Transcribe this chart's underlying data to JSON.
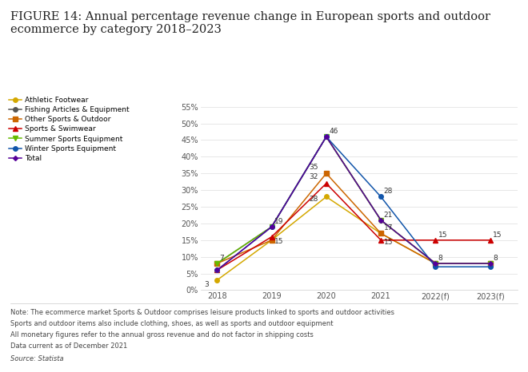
{
  "title": "FIGURE 14: Annual percentage revenue change in European sports and outdoor\necommerce by category 2018–2023",
  "categories": [
    "2018",
    "2019",
    "2020",
    "2021",
    "2022(f)",
    "2023(f)"
  ],
  "series": [
    {
      "name": "Athletic Footwear",
      "color": "#d4a800",
      "marker": "o",
      "markersize": 4,
      "linestyle": "-",
      "values": [
        3,
        15,
        28,
        17,
        8,
        8
      ]
    },
    {
      "name": "Fishing Articles & Equipment",
      "color": "#555555",
      "marker": "o",
      "markersize": 4,
      "linestyle": "-",
      "values": [
        8,
        19,
        46,
        21,
        8,
        8
      ]
    },
    {
      "name": "Other Sports & Outdoor",
      "color": "#cc6600",
      "marker": "s",
      "markersize": 4,
      "linestyle": "-",
      "values": [
        8,
        15,
        35,
        17,
        8,
        8
      ]
    },
    {
      "name": "Sports & Swimwear",
      "color": "#cc0000",
      "marker": "^",
      "markersize": 4,
      "linestyle": "-",
      "values": [
        6,
        16,
        32,
        15,
        15,
        15
      ]
    },
    {
      "name": "Summer Sports Equipment",
      "color": "#66bb00",
      "marker": "v",
      "markersize": 4,
      "linestyle": "-",
      "values": [
        8,
        19,
        46,
        21,
        8,
        8
      ]
    },
    {
      "name": "Winter Sports Equipment",
      "color": "#1155aa",
      "marker": "o",
      "markersize": 4,
      "linestyle": "-",
      "values": [
        6,
        19,
        46,
        28,
        7,
        7
      ]
    },
    {
      "name": "Total",
      "color": "#550099",
      "marker": "D",
      "markersize": 3,
      "linestyle": "-",
      "values": [
        6,
        19,
        46,
        21,
        8,
        8
      ]
    }
  ],
  "ylim": [
    0,
    58
  ],
  "yticks": [
    0,
    5,
    10,
    15,
    20,
    25,
    30,
    35,
    40,
    45,
    50,
    55
  ],
  "note_lines": [
    "Note: The ecommerce market Sports & Outdoor comprises leisure products linked to sports and outdoor activities",
    "Sports and outdoor items also include clothing, shoes, as well as sports and outdoor equipment",
    "All monetary figures refer to the annual gross revenue and do not factor in shipping costs",
    "Data current as of December 2021"
  ],
  "source": "Source: Statista",
  "background_color": "#ffffff",
  "legend_fontsize": 6.5,
  "title_fontsize": 10.5,
  "axis_fontsize": 7,
  "note_fontsize": 6,
  "annot_fontsize": 6.5
}
